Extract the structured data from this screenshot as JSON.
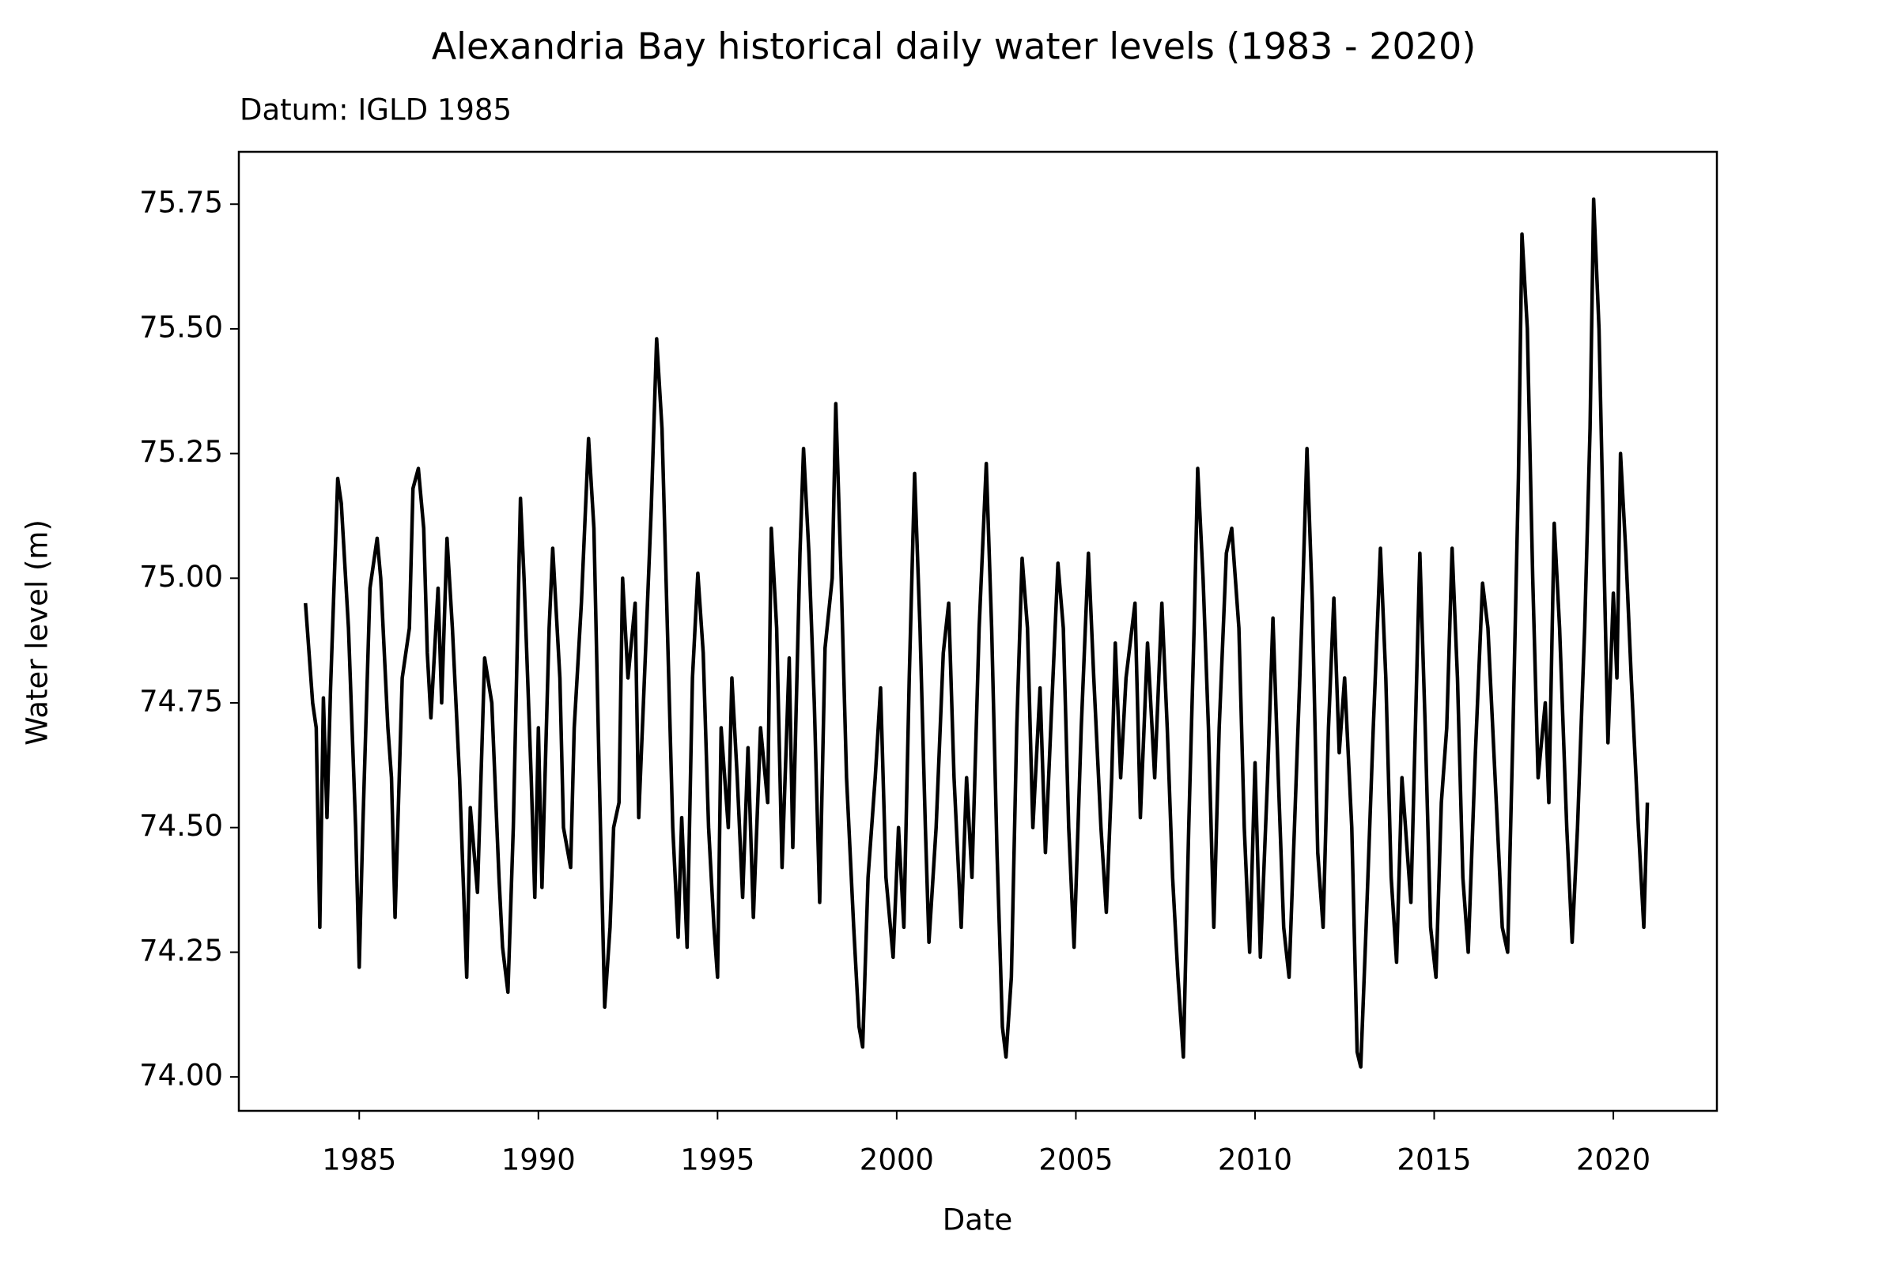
{
  "chart_data": {
    "type": "line",
    "title": "Alexandria Bay historical daily water levels (1983 - 2020)",
    "subtitle": "Datum: IGLD 1985",
    "x_label": "Date",
    "y_label": "Water level (m)",
    "color": "#000000",
    "xlim": [
      1981.64,
      2022.89
    ],
    "ylim": [
      73.932,
      75.855
    ],
    "xticks": [
      1985,
      1990,
      1995,
      2000,
      2005,
      2010,
      2015,
      2020
    ],
    "yticks": [
      {
        "value": 74,
        "label": "74.00"
      },
      {
        "value": 74.25,
        "label": "74.25"
      },
      {
        "value": 74.5,
        "label": "74.50"
      },
      {
        "value": 74.75,
        "label": "74.75"
      },
      {
        "value": 75,
        "label": "75.00"
      },
      {
        "value": 75.25,
        "label": "75.25"
      },
      {
        "value": 75.5,
        "label": "75.50"
      },
      {
        "value": 75.75,
        "label": "75.75"
      }
    ],
    "x": [
      1983.5,
      1983.7,
      1983.8,
      1983.9,
      1984.0,
      1984.1,
      1984.2,
      1984.4,
      1984.5,
      1984.7,
      1984.9,
      1985.0,
      1985.1,
      1985.3,
      1985.5,
      1985.6,
      1985.8,
      1985.9,
      1986.0,
      1986.2,
      1986.4,
      1986.5,
      1986.65,
      1986.8,
      1986.9,
      1987.0,
      1987.2,
      1987.3,
      1987.45,
      1987.6,
      1987.8,
      1987.9,
      1988.0,
      1988.1,
      1988.3,
      1988.5,
      1988.7,
      1988.9,
      1989.0,
      1989.15,
      1989.3,
      1989.5,
      1989.6,
      1989.8,
      1989.9,
      1990.0,
      1990.1,
      1990.3,
      1990.4,
      1990.6,
      1990.7,
      1990.9,
      1991.0,
      1991.2,
      1991.4,
      1991.55,
      1991.7,
      1991.85,
      1992.0,
      1992.1,
      1992.25,
      1992.35,
      1992.5,
      1992.7,
      1992.8,
      1993.0,
      1993.15,
      1993.3,
      1993.45,
      1993.6,
      1993.75,
      1993.9,
      1994.0,
      1994.15,
      1994.3,
      1994.45,
      1994.6,
      1994.75,
      1994.9,
      1995.0,
      1995.1,
      1995.3,
      1995.4,
      1995.55,
      1995.7,
      1995.85,
      1996.0,
      1996.2,
      1996.4,
      1996.5,
      1996.65,
      1996.8,
      1997.0,
      1997.1,
      1997.3,
      1997.4,
      1997.55,
      1997.7,
      1997.85,
      1998.0,
      1998.2,
      1998.3,
      1998.45,
      1998.6,
      1998.8,
      1998.95,
      1999.05,
      1999.2,
      1999.4,
      1999.55,
      1999.7,
      1999.9,
      2000.05,
      2000.2,
      2000.35,
      2000.5,
      2000.65,
      2000.8,
      2000.9,
      2001.1,
      2001.3,
      2001.45,
      2001.6,
      2001.8,
      2001.95,
      2002.1,
      2002.3,
      2002.5,
      2002.65,
      2002.8,
      2002.95,
      2003.05,
      2003.2,
      2003.35,
      2003.5,
      2003.65,
      2003.8,
      2004.0,
      2004.15,
      2004.3,
      2004.5,
      2004.65,
      2004.8,
      2004.95,
      2005.15,
      2005.35,
      2005.5,
      2005.7,
      2005.85,
      2006.0,
      2006.1,
      2006.25,
      2006.4,
      2006.65,
      2006.8,
      2007.0,
      2007.2,
      2007.4,
      2007.55,
      2007.7,
      2007.85,
      2008.0,
      2008.15,
      2008.3,
      2008.4,
      2008.55,
      2008.7,
      2008.85,
      2009.0,
      2009.2,
      2009.35,
      2009.55,
      2009.7,
      2009.85,
      2010.0,
      2010.15,
      2010.35,
      2010.5,
      2010.65,
      2010.8,
      2010.95,
      2011.1,
      2011.3,
      2011.45,
      2011.6,
      2011.75,
      2011.9,
      2012.05,
      2012.2,
      2012.35,
      2012.5,
      2012.7,
      2012.85,
      2012.95,
      2013.1,
      2013.3,
      2013.5,
      2013.65,
      2013.8,
      2013.95,
      2014.1,
      2014.35,
      2014.6,
      2014.75,
      2014.9,
      2015.05,
      2015.2,
      2015.35,
      2015.5,
      2015.65,
      2015.8,
      2015.95,
      2016.15,
      2016.35,
      2016.5,
      2016.7,
      2016.9,
      2017.05,
      2017.2,
      2017.35,
      2017.45,
      2017.6,
      2017.75,
      2017.9,
      2018.1,
      2018.2,
      2018.35,
      2018.5,
      2018.7,
      2018.85,
      2019.0,
      2019.2,
      2019.35,
      2019.45,
      2019.6,
      2019.75,
      2019.85,
      2020.0,
      2020.1,
      2020.2,
      2020.35,
      2020.5,
      2020.7,
      2020.85,
      2020.95
    ],
    "values": [
      74.95,
      74.75,
      74.7,
      74.3,
      74.76,
      74.52,
      74.78,
      75.2,
      75.15,
      74.9,
      74.5,
      74.22,
      74.5,
      74.98,
      75.08,
      75.0,
      74.7,
      74.6,
      74.32,
      74.8,
      74.9,
      75.18,
      75.22,
      75.1,
      74.85,
      74.72,
      74.98,
      74.75,
      75.08,
      74.9,
      74.6,
      74.4,
      74.2,
      74.54,
      74.37,
      74.84,
      74.75,
      74.4,
      74.26,
      74.17,
      74.5,
      75.16,
      75.0,
      74.6,
      74.36,
      74.7,
      74.38,
      74.9,
      75.06,
      74.8,
      74.5,
      74.42,
      74.7,
      74.95,
      75.28,
      75.1,
      74.6,
      74.14,
      74.3,
      74.5,
      74.55,
      75.0,
      74.8,
      74.95,
      74.52,
      74.87,
      75.14,
      75.48,
      75.3,
      74.9,
      74.5,
      74.28,
      74.52,
      74.26,
      74.8,
      75.01,
      74.85,
      74.5,
      74.3,
      74.2,
      74.7,
      74.5,
      74.8,
      74.6,
      74.36,
      74.66,
      74.32,
      74.7,
      74.55,
      75.1,
      74.9,
      74.42,
      74.84,
      74.46,
      75.05,
      75.26,
      75.05,
      74.75,
      74.35,
      74.86,
      75.0,
      75.35,
      75.0,
      74.6,
      74.3,
      74.1,
      74.06,
      74.4,
      74.6,
      74.78,
      74.4,
      74.24,
      74.5,
      74.3,
      74.8,
      75.21,
      74.9,
      74.5,
      74.27,
      74.5,
      74.85,
      74.95,
      74.6,
      74.3,
      74.6,
      74.4,
      74.9,
      75.23,
      74.9,
      74.45,
      74.1,
      74.04,
      74.2,
      74.7,
      75.04,
      74.9,
      74.5,
      74.78,
      74.45,
      74.7,
      75.03,
      74.9,
      74.5,
      74.26,
      74.7,
      75.05,
      74.8,
      74.5,
      74.33,
      74.6,
      74.87,
      74.6,
      74.8,
      74.95,
      74.52,
      74.87,
      74.6,
      74.95,
      74.7,
      74.4,
      74.2,
      74.04,
      74.5,
      74.9,
      75.22,
      75.0,
      74.7,
      74.3,
      74.7,
      75.05,
      75.1,
      74.9,
      74.5,
      74.25,
      74.63,
      74.24,
      74.6,
      74.92,
      74.6,
      74.3,
      74.2,
      74.5,
      74.9,
      75.26,
      74.95,
      74.45,
      74.3,
      74.7,
      74.96,
      74.65,
      74.8,
      74.5,
      74.05,
      74.02,
      74.3,
      74.7,
      75.06,
      74.8,
      74.4,
      74.23,
      74.6,
      74.35,
      75.05,
      74.7,
      74.3,
      74.2,
      74.55,
      74.7,
      75.06,
      74.8,
      74.4,
      74.25,
      74.65,
      74.99,
      74.9,
      74.6,
      74.3,
      74.25,
      74.7,
      75.2,
      75.69,
      75.5,
      75.0,
      74.6,
      74.75,
      74.55,
      75.11,
      74.9,
      74.5,
      74.27,
      74.5,
      74.9,
      75.3,
      75.76,
      75.5,
      75.0,
      74.67,
      74.97,
      74.8,
      75.25,
      75.05,
      74.8,
      74.5,
      74.3,
      74.55
    ]
  }
}
